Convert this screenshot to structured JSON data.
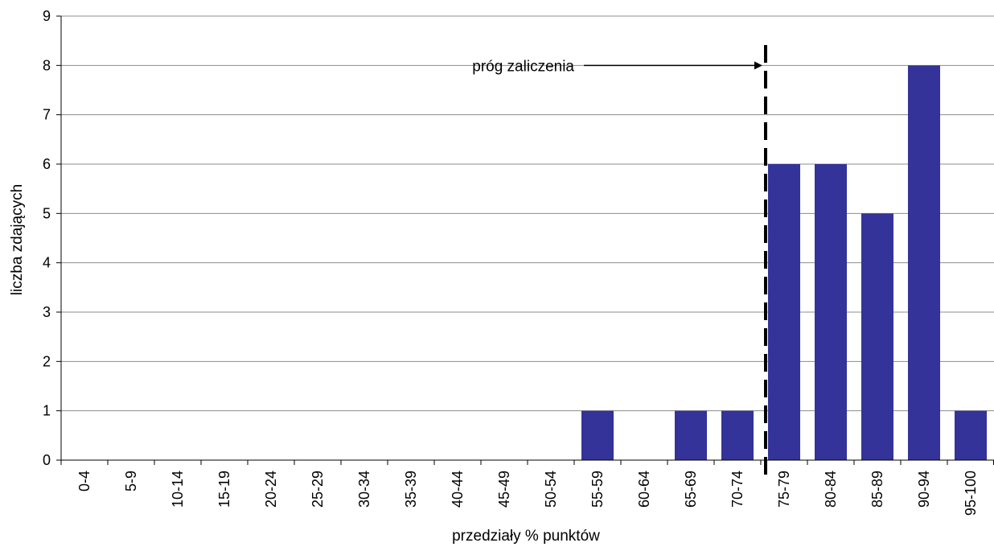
{
  "chart_data": {
    "type": "bar",
    "categories": [
      "0-4",
      "5-9",
      "10-14",
      "15-19",
      "20-24",
      "25-29",
      "30-34",
      "35-39",
      "40-44",
      "45-49",
      "50-54",
      "55-59",
      "60-64",
      "65-69",
      "70-74",
      "75-79",
      "80-84",
      "85-89",
      "90-94",
      "95-100"
    ],
    "values": [
      0,
      0,
      0,
      0,
      0,
      0,
      0,
      0,
      0,
      0,
      0,
      1,
      0,
      1,
      1,
      6,
      6,
      5,
      8,
      1
    ],
    "xlabel": "przedziały % punktów",
    "ylabel": "liczba zdających",
    "ylim": [
      0,
      9
    ],
    "yticks": [
      0,
      1,
      2,
      3,
      4,
      5,
      6,
      7,
      8,
      9
    ],
    "grid": true,
    "legend": "none",
    "bar_color": "#333399",
    "annotation": {
      "text": "próg zaliczenia",
      "threshold_between": [
        "70-74",
        "75-79"
      ],
      "arrow_at_value": 8,
      "style": "dashed-vertical-line"
    }
  }
}
